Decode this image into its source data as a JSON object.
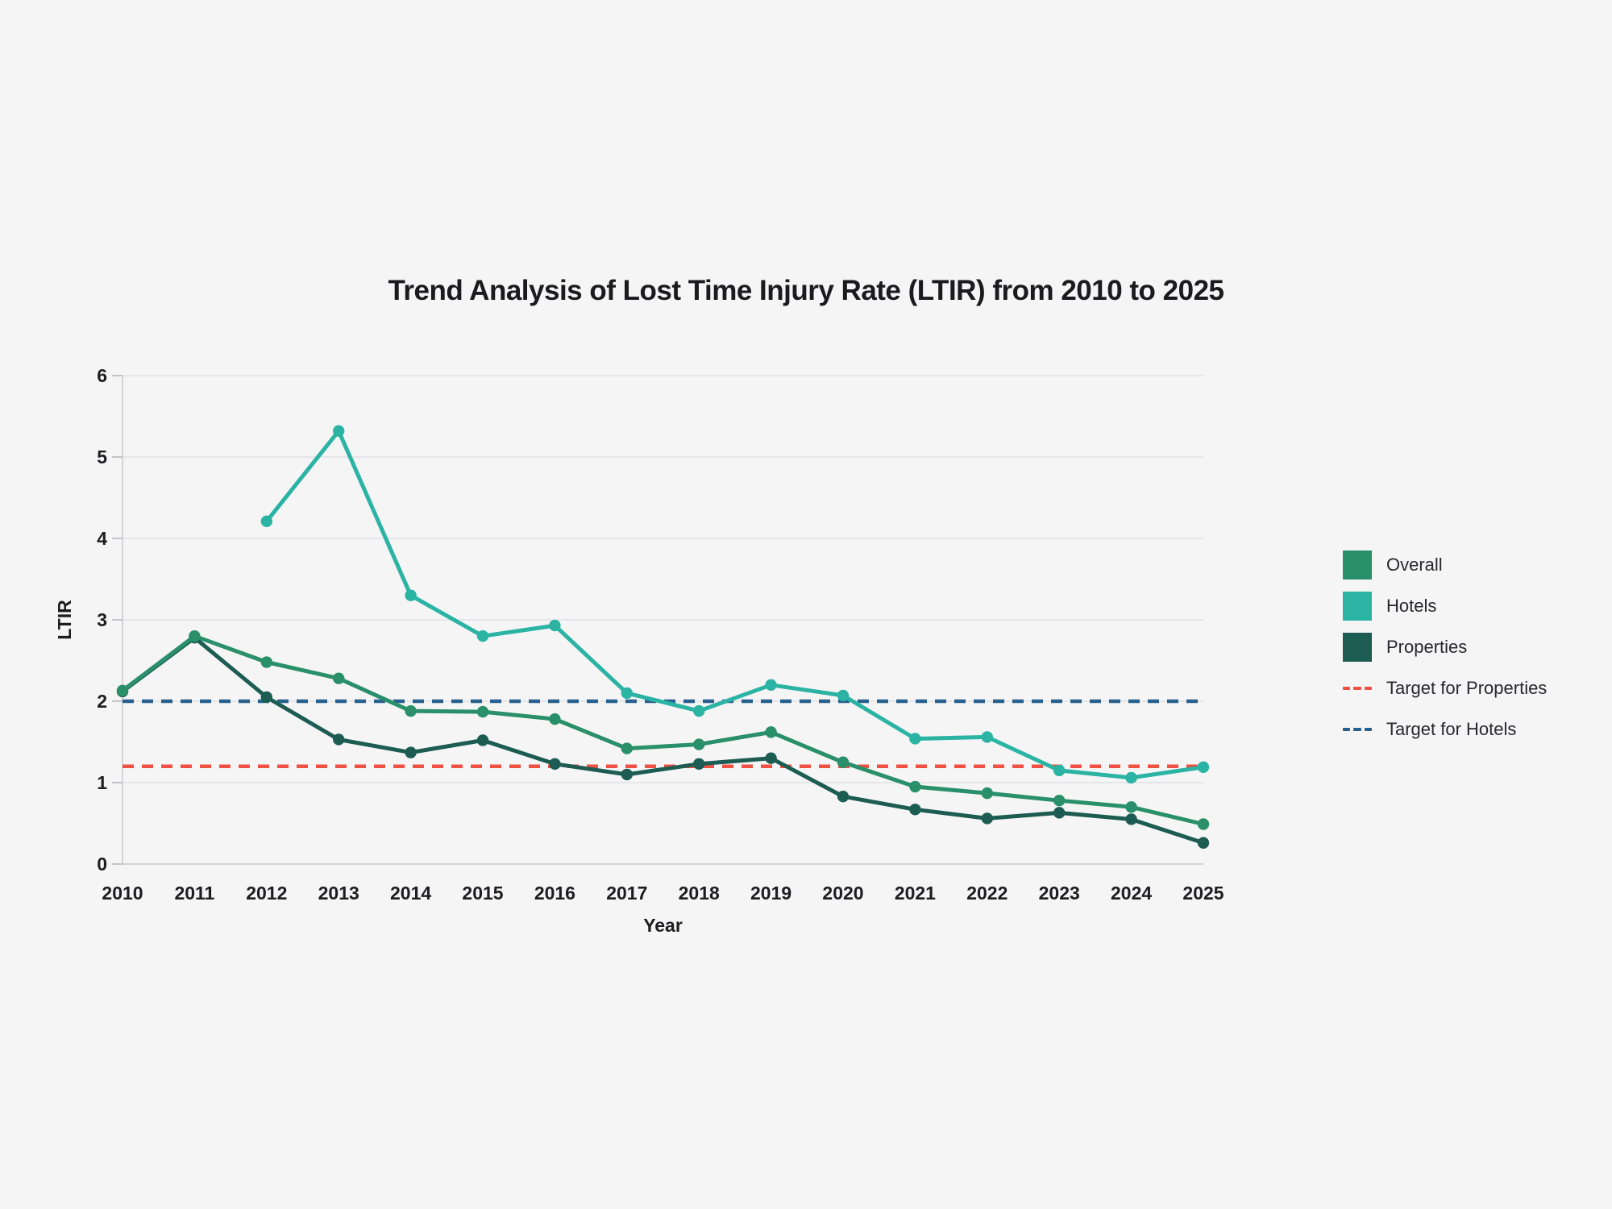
{
  "chart_data": {
    "type": "line",
    "title": "Trend Analysis of Lost Time Injury Rate (LTIR) from 2010 to 2025",
    "xlabel": "Year",
    "ylabel": "LTIR",
    "ylim": [
      0,
      6
    ],
    "yticks": [
      0,
      1,
      2,
      3,
      4,
      5,
      6
    ],
    "categories": [
      "2010",
      "2011",
      "2012",
      "2013",
      "2014",
      "2015",
      "2016",
      "2017",
      "2018",
      "2019",
      "2020",
      "2021",
      "2022",
      "2023",
      "2024",
      "2025"
    ],
    "grid": true,
    "legend_position": "right",
    "series": [
      {
        "name": "Overall",
        "color": "#2a8f6b",
        "values": [
          2.13,
          2.8,
          2.48,
          2.28,
          1.88,
          1.87,
          1.78,
          1.42,
          1.47,
          1.62,
          1.25,
          0.95,
          0.87,
          0.78,
          0.7,
          0.49
        ]
      },
      {
        "name": "Hotels",
        "color": "#2bb3a3",
        "values": [
          null,
          null,
          4.21,
          5.32,
          3.3,
          2.8,
          2.93,
          2.1,
          1.88,
          2.2,
          2.07,
          1.54,
          1.56,
          1.15,
          1.06,
          1.19
        ]
      },
      {
        "name": "Properties",
        "color": "#1d5c53",
        "values": [
          2.12,
          2.78,
          2.05,
          1.53,
          1.37,
          1.52,
          1.23,
          1.1,
          1.23,
          1.3,
          0.83,
          0.67,
          0.56,
          0.63,
          0.55,
          0.26
        ]
      }
    ],
    "targets": [
      {
        "name": "Target for Properties",
        "color": "#ef5142",
        "value": 1.2
      },
      {
        "name": "Target for Hotels",
        "color": "#27608c",
        "value": 2.0
      }
    ]
  },
  "colors": {
    "background": "#f5f5f6",
    "gridline": "#e2e2e4",
    "axis": "#c9c9cc",
    "tick": "#b3b3b8",
    "text": "#1d1d1f"
  }
}
